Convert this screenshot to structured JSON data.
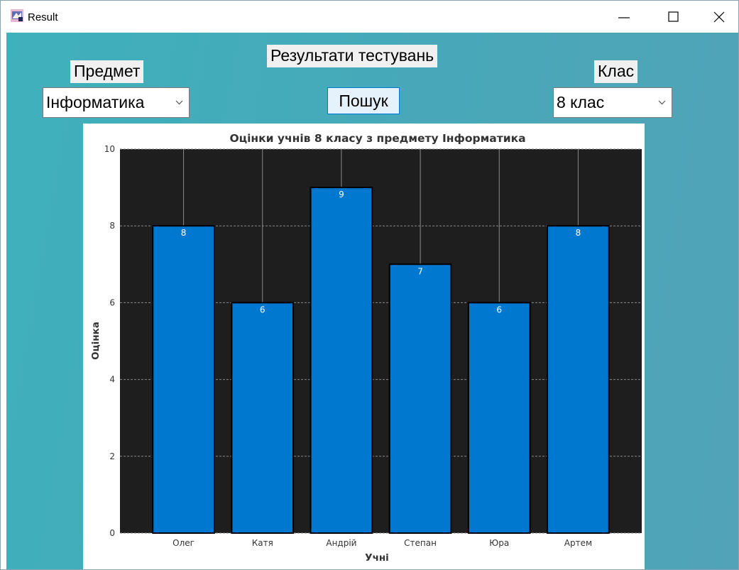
{
  "window": {
    "title": "Result"
  },
  "header": {
    "title": "Результати тестувань",
    "subject_label": "Предмет",
    "subject_value": "Інформатика",
    "class_label": "Клас",
    "class_value": "8 клас",
    "search_label": "Пошук"
  },
  "icons": {
    "app": "app-icon",
    "minimize": "minimize-icon",
    "maximize": "maximize-icon",
    "close": "close-icon",
    "dropdown": "chevron-down-icon"
  },
  "chart_data": {
    "type": "bar",
    "title": "Оцінки учнів 8 класу з предмету Інформатика",
    "xlabel": "Учні",
    "ylabel": "Оцінка",
    "categories": [
      "Олег",
      "Катя",
      "Андрій",
      "Степан",
      "Юра",
      "Артем"
    ],
    "values": [
      8,
      6,
      9,
      7,
      6,
      8
    ],
    "ylim": [
      0,
      10
    ],
    "yticks": [
      "0",
      "2",
      "4",
      "6",
      "8",
      "10"
    ],
    "grid": true,
    "bar_color": "#0078d0",
    "plot_background": "#1e1e1e"
  }
}
